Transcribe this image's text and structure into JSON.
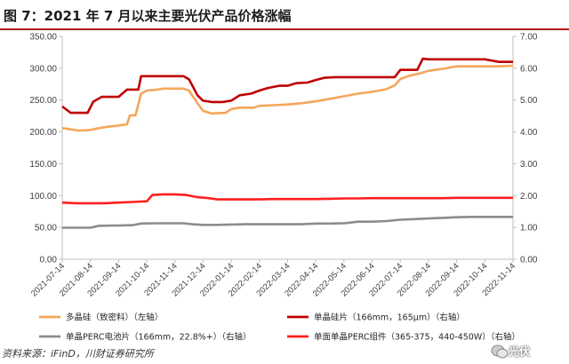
{
  "title": "图 7：2021 年 7 月以来主要光伏产品价格涨幅",
  "footer": "资料来源：iFinD，川财证券研究所",
  "watermark": "光伏",
  "colors": {
    "orange": "#f5a65a",
    "darkred": "#c00000",
    "gray": "#8c8c8c",
    "red": "#ff1f1f",
    "rule": "#b31b1b"
  },
  "chart_data": {
    "type": "line",
    "title": "",
    "xlabel": "",
    "ylabel_left": "",
    "ylabel_right": "",
    "ylim_left": [
      0,
      350
    ],
    "ylim_right": [
      0,
      7
    ],
    "yticks_left": [
      "0.00",
      "50.00",
      "100.00",
      "150.00",
      "200.00",
      "250.00",
      "300.00",
      "350.00"
    ],
    "yticks_right": [
      "0.00",
      "1.00",
      "2.00",
      "3.00",
      "4.00",
      "5.00",
      "6.00",
      "7.00"
    ],
    "x_categories": [
      "2021-07-14",
      "2021-08-14",
      "2021-09-14",
      "2021-10-14",
      "2021-11-14",
      "2021-12-14",
      "2022-01-14",
      "2022-02-14",
      "2022-03-14",
      "2022-04-14",
      "2022-05-14",
      "2022-06-14",
      "2022-07-14",
      "2022-08-14",
      "2022-09-14",
      "2022-10-14",
      "2022-11-14"
    ],
    "grid": false,
    "legend_position": "bottom",
    "series": [
      {
        "name": "多晶硅（致密料）（左轴）",
        "axis": "left",
        "color": "#f5a65a",
        "legend_row": 0,
        "legend_col": 0,
        "points": [
          [
            0,
            206
          ],
          [
            0.3,
            204
          ],
          [
            0.6,
            202
          ],
          [
            1.0,
            203
          ],
          [
            1.3,
            206
          ],
          [
            1.6,
            208
          ],
          [
            2.0,
            210
          ],
          [
            2.3,
            212
          ],
          [
            2.4,
            226
          ],
          [
            2.6,
            226
          ],
          [
            2.8,
            260
          ],
          [
            3.0,
            265
          ],
          [
            3.3,
            266
          ],
          [
            3.6,
            268
          ],
          [
            4.0,
            268
          ],
          [
            4.3,
            268
          ],
          [
            4.5,
            265
          ],
          [
            4.8,
            245
          ],
          [
            5.0,
            233
          ],
          [
            5.3,
            229
          ],
          [
            5.8,
            230
          ],
          [
            6.0,
            236
          ],
          [
            6.3,
            238
          ],
          [
            6.8,
            238
          ],
          [
            7.0,
            241
          ],
          [
            7.5,
            242
          ],
          [
            8.0,
            243
          ],
          [
            8.5,
            245
          ],
          [
            9.0,
            248
          ],
          [
            9.5,
            252
          ],
          [
            10.0,
            256
          ],
          [
            10.5,
            260
          ],
          [
            11.0,
            263
          ],
          [
            11.5,
            267
          ],
          [
            11.8,
            273
          ],
          [
            12.0,
            283
          ],
          [
            12.3,
            288
          ],
          [
            12.7,
            292
          ],
          [
            13.0,
            296
          ],
          [
            13.5,
            299
          ],
          [
            14.0,
            303
          ],
          [
            14.5,
            303
          ],
          [
            15.0,
            303
          ],
          [
            15.5,
            303
          ],
          [
            16.0,
            304
          ]
        ]
      },
      {
        "name": "单晶硅片（166mm，165μm）（右轴）",
        "axis": "right",
        "color": "#c00000",
        "legend_row": 0,
        "legend_col": 1,
        "points": [
          [
            0,
            4.8
          ],
          [
            0.3,
            4.6
          ],
          [
            0.6,
            4.6
          ],
          [
            0.9,
            4.6
          ],
          [
            1.1,
            4.95
          ],
          [
            1.4,
            5.1
          ],
          [
            1.7,
            5.1
          ],
          [
            2.0,
            5.1
          ],
          [
            2.3,
            5.33
          ],
          [
            2.7,
            5.33
          ],
          [
            2.8,
            5.75
          ],
          [
            3.2,
            5.75
          ],
          [
            3.6,
            5.75
          ],
          [
            4.0,
            5.75
          ],
          [
            4.3,
            5.75
          ],
          [
            4.5,
            5.65
          ],
          [
            4.8,
            5.15
          ],
          [
            5.0,
            4.98
          ],
          [
            5.3,
            4.94
          ],
          [
            5.7,
            4.94
          ],
          [
            6.0,
            4.98
          ],
          [
            6.3,
            5.15
          ],
          [
            6.7,
            5.2
          ],
          [
            7.0,
            5.3
          ],
          [
            7.3,
            5.38
          ],
          [
            7.7,
            5.45
          ],
          [
            8.0,
            5.45
          ],
          [
            8.3,
            5.53
          ],
          [
            8.7,
            5.55
          ],
          [
            9.0,
            5.63
          ],
          [
            9.3,
            5.7
          ],
          [
            9.7,
            5.72
          ],
          [
            10.0,
            5.72
          ],
          [
            10.5,
            5.72
          ],
          [
            11.0,
            5.72
          ],
          [
            11.5,
            5.72
          ],
          [
            11.8,
            5.72
          ],
          [
            12.0,
            5.95
          ],
          [
            12.3,
            5.95
          ],
          [
            12.6,
            5.95
          ],
          [
            12.8,
            6.3
          ],
          [
            13.0,
            6.28
          ],
          [
            13.5,
            6.28
          ],
          [
            14.0,
            6.28
          ],
          [
            14.5,
            6.28
          ],
          [
            15.0,
            6.28
          ],
          [
            15.5,
            6.2
          ],
          [
            16.0,
            6.2
          ]
        ]
      },
      {
        "name": "单晶PERC电池片（166mm，22.8%+）（右轴）",
        "axis": "right",
        "color": "#8c8c8c",
        "legend_row": 1,
        "legend_col": 0,
        "points": [
          [
            0,
            0.99
          ],
          [
            0.5,
            0.99
          ],
          [
            1.0,
            0.99
          ],
          [
            1.3,
            1.05
          ],
          [
            2.0,
            1.06
          ],
          [
            2.5,
            1.07
          ],
          [
            2.8,
            1.12
          ],
          [
            3.3,
            1.13
          ],
          [
            3.8,
            1.13
          ],
          [
            4.3,
            1.13
          ],
          [
            4.6,
            1.1
          ],
          [
            5.0,
            1.08
          ],
          [
            5.5,
            1.08
          ],
          [
            6.0,
            1.09
          ],
          [
            6.5,
            1.1
          ],
          [
            7.0,
            1.1
          ],
          [
            7.5,
            1.1
          ],
          [
            8.0,
            1.1
          ],
          [
            8.5,
            1.1
          ],
          [
            9.0,
            1.12
          ],
          [
            9.5,
            1.12
          ],
          [
            10.0,
            1.13
          ],
          [
            10.5,
            1.18
          ],
          [
            11.0,
            1.18
          ],
          [
            11.5,
            1.2
          ],
          [
            12.0,
            1.24
          ],
          [
            12.5,
            1.26
          ],
          [
            13.0,
            1.28
          ],
          [
            13.5,
            1.3
          ],
          [
            14.0,
            1.32
          ],
          [
            14.5,
            1.33
          ],
          [
            15.0,
            1.33
          ],
          [
            15.5,
            1.33
          ],
          [
            16.0,
            1.33
          ]
        ]
      },
      {
        "name": "单面单晶PERC组件（365-375，440-450W）（右轴）",
        "axis": "right",
        "color": "#ff1f1f",
        "legend_row": 1,
        "legend_col": 1,
        "points": [
          [
            0,
            1.78
          ],
          [
            0.5,
            1.76
          ],
          [
            1.0,
            1.76
          ],
          [
            1.5,
            1.76
          ],
          [
            2.0,
            1.78
          ],
          [
            2.5,
            1.8
          ],
          [
            3.0,
            1.82
          ],
          [
            3.2,
            2.02
          ],
          [
            3.6,
            2.04
          ],
          [
            4.0,
            2.04
          ],
          [
            4.4,
            2.02
          ],
          [
            4.8,
            1.95
          ],
          [
            5.2,
            1.92
          ],
          [
            5.5,
            1.88
          ],
          [
            6.0,
            1.88
          ],
          [
            6.5,
            1.88
          ],
          [
            7.0,
            1.88
          ],
          [
            7.5,
            1.89
          ],
          [
            8.0,
            1.89
          ],
          [
            8.5,
            1.89
          ],
          [
            9.0,
            1.89
          ],
          [
            9.5,
            1.9
          ],
          [
            10.0,
            1.91
          ],
          [
            10.5,
            1.91
          ],
          [
            11.0,
            1.92
          ],
          [
            11.5,
            1.92
          ],
          [
            12.0,
            1.92
          ],
          [
            12.5,
            1.92
          ],
          [
            13.0,
            1.92
          ],
          [
            13.5,
            1.92
          ],
          [
            14.0,
            1.93
          ],
          [
            14.5,
            1.93
          ],
          [
            15.0,
            1.93
          ],
          [
            15.5,
            1.93
          ],
          [
            16.0,
            1.93
          ]
        ]
      }
    ]
  }
}
